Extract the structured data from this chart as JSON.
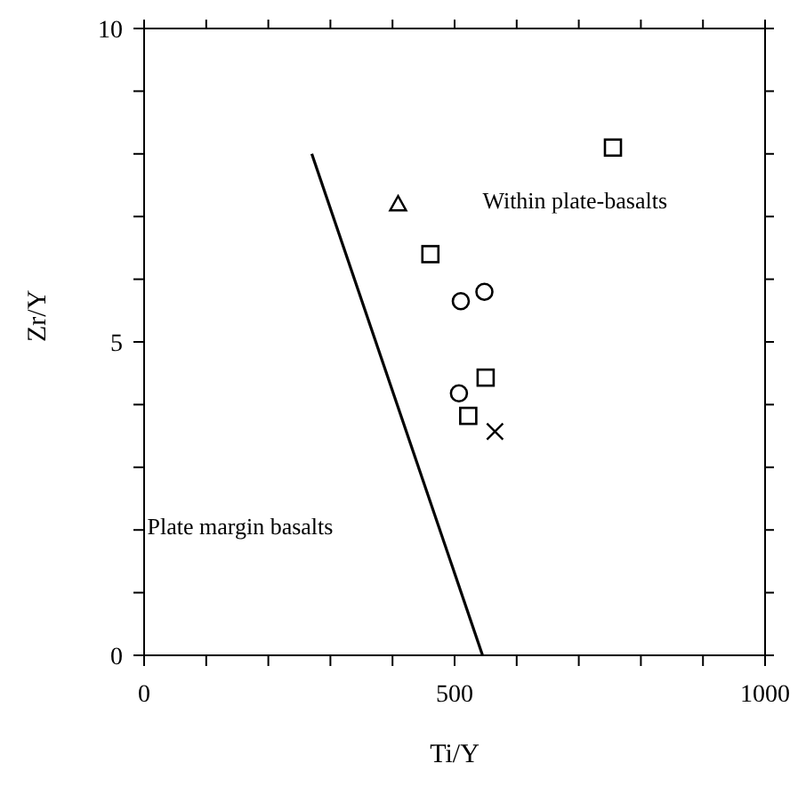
{
  "chart_data": {
    "type": "scatter",
    "xlabel": "Ti/Y",
    "ylabel": "Zr/Y",
    "xlim": [
      0,
      1000
    ],
    "ylim": [
      0,
      10
    ],
    "xticks": [
      0,
      {
        "value": 100,
        "label": null
      },
      {
        "value": 200,
        "label": null
      },
      {
        "value": 300,
        "label": null
      },
      {
        "value": 400,
        "label": null
      },
      500,
      {
        "value": 600,
        "label": null
      },
      {
        "value": 700,
        "label": null
      },
      {
        "value": 800,
        "label": null
      },
      {
        "value": 900,
        "label": null
      },
      1000
    ],
    "yticks": [
      0,
      {
        "value": 1,
        "label": null
      },
      {
        "value": 2,
        "label": null
      },
      {
        "value": 3,
        "label": null
      },
      {
        "value": 4,
        "label": null
      },
      5,
      {
        "value": 6,
        "label": null
      },
      {
        "value": 7,
        "label": null
      },
      {
        "value": 8,
        "label": null
      },
      {
        "value": 9,
        "label": null
      },
      10
    ],
    "annotations": [
      "Within plate-basalts",
      "Plate margin basalts"
    ],
    "series": [
      {
        "type": "line",
        "x": [
          270,
          545
        ],
        "values": [
          8,
          0
        ],
        "color": "#000000",
        "marker": "none",
        "line_style": "solid"
      },
      {
        "marker": "square",
        "color": "#000000",
        "x": [
          461,
          755,
          550,
          522
        ],
        "values": [
          6.4,
          8.1,
          4.43,
          3.82
        ]
      },
      {
        "marker": "circle",
        "color": "#000000",
        "x": [
          510,
          548,
          507
        ],
        "values": [
          5.65,
          5.8,
          4.18
        ]
      },
      {
        "marker": "triangle",
        "color": "#000000",
        "x": [
          409
        ],
        "values": [
          7.2
        ]
      },
      {
        "marker": "cross",
        "color": "#000000",
        "x": [
          565
        ],
        "values": [
          3.57
        ]
      }
    ]
  }
}
